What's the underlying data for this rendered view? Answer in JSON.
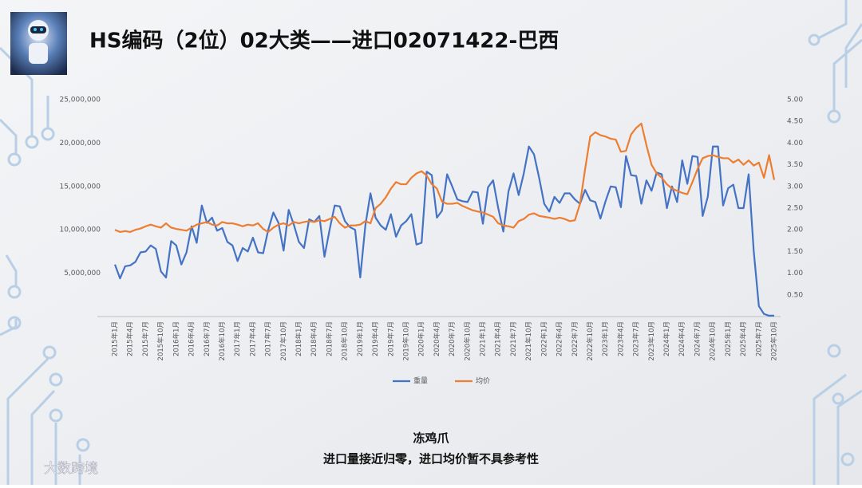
{
  "chart_data": {
    "type": "line",
    "title": "HS编码（2位）02大类——进口02071422-巴西",
    "categories": [
      "2015年1月",
      null,
      null,
      "2015年4月",
      null,
      null,
      "2015年7月",
      null,
      null,
      "2015年10月",
      null,
      null,
      "2016年1月",
      null,
      null,
      "2016年4月",
      null,
      null,
      "2016年7月",
      null,
      null,
      "2016年10月",
      null,
      null,
      "2017年1月",
      null,
      null,
      "2017年4月",
      null,
      null,
      "2017年7月",
      null,
      null,
      "2017年10月",
      null,
      null,
      "2018年1月",
      null,
      null,
      "2018年4月",
      null,
      null,
      "2018年7月",
      null,
      null,
      "2018年10月",
      null,
      null,
      "2019年1月",
      null,
      null,
      "2019年4月",
      null,
      null,
      "2019年7月",
      null,
      null,
      "2019年10月",
      null,
      null,
      "2020年1月",
      null,
      null,
      "2020年4月",
      null,
      null,
      "2020年7月",
      null,
      null,
      "2020年10月",
      null,
      null,
      "2021年1月",
      null,
      null,
      "2021年4月",
      null,
      null,
      "2021年7月",
      null,
      null,
      "2021年10月",
      null,
      null,
      "2022年1月",
      null,
      null,
      "2022年4月",
      null,
      null,
      "2022年7月",
      null,
      null,
      "2022年10月",
      null,
      null,
      "2023年1月",
      null,
      null,
      "2023年4月",
      null,
      null,
      "2023年7月",
      null,
      null,
      "2023年10月",
      null,
      null,
      "2024年1月",
      null,
      null,
      "2024年4月",
      null,
      null,
      "2024年7月",
      null,
      null,
      "2024年10月",
      null,
      null,
      "2025年1月",
      null,
      null,
      "2025年4月",
      null,
      null,
      "2025年7月",
      null,
      null,
      "2025年10月"
    ],
    "series": [
      {
        "name": "重量",
        "color": "#4472c4",
        "values": [
          6000000,
          4400000,
          5800000,
          5900000,
          6300000,
          7400000,
          7500000,
          8200000,
          7800000,
          5200000,
          4500000,
          8700000,
          8200000,
          6000000,
          7400000,
          10400000,
          8500000,
          12800000,
          10800000,
          11400000,
          9900000,
          10200000,
          8600000,
          8200000,
          6400000,
          7900000,
          7500000,
          9100000,
          7400000,
          7300000,
          10000000,
          12000000,
          10800000,
          7600000,
          12300000,
          10600000,
          8600000,
          7900000,
          11200000,
          10900000,
          11600000,
          6900000,
          10000000,
          12800000,
          12700000,
          11000000,
          10300000,
          10000000,
          4500000,
          10500000,
          14200000,
          11400000,
          10500000,
          10000000,
          11800000,
          9200000,
          10500000,
          11000000,
          11800000,
          8300000,
          8500000,
          16700000,
          16300000,
          11400000,
          12200000,
          16400000,
          15000000,
          13500000,
          13300000,
          13200000,
          14400000,
          14300000,
          10700000,
          14900000,
          15700000,
          12500000,
          9800000,
          14400000,
          16500000,
          14000000,
          16500000,
          19600000,
          18700000,
          16000000,
          13000000,
          12100000,
          13800000,
          13100000,
          14200000,
          14200000,
          13500000,
          13000000,
          14600000,
          13400000,
          13200000,
          11300000,
          13300000,
          15000000,
          14900000,
          12600000,
          18500000,
          16300000,
          16200000,
          13000000,
          15700000,
          14500000,
          16600000,
          16400000,
          12500000,
          15000000,
          13200000,
          18000000,
          15300000,
          18500000,
          18400000,
          11600000,
          13800000,
          19600000,
          19600000,
          12800000,
          14800000,
          15200000,
          12500000,
          12500000,
          16400000,
          7500000,
          1200000,
          300000,
          100000,
          100000
        ]
      },
      {
        "name": "均价",
        "color": "#ed7d31",
        "axis": "y2",
        "values": [
          2.0,
          1.95,
          1.97,
          1.95,
          2.0,
          2.03,
          2.08,
          2.12,
          2.08,
          2.05,
          2.15,
          2.05,
          2.02,
          2.0,
          1.98,
          2.05,
          2.12,
          2.15,
          2.18,
          2.12,
          2.1,
          2.18,
          2.15,
          2.15,
          2.12,
          2.08,
          2.12,
          2.1,
          2.15,
          2.02,
          1.95,
          2.05,
          2.12,
          2.15,
          2.1,
          2.18,
          2.15,
          2.18,
          2.2,
          2.18,
          2.22,
          2.2,
          2.25,
          2.3,
          2.15,
          2.05,
          2.1,
          2.1,
          2.12,
          2.2,
          2.15,
          2.5,
          2.6,
          2.75,
          2.95,
          3.1,
          3.05,
          3.05,
          3.2,
          3.3,
          3.35,
          3.25,
          3.05,
          2.95,
          2.65,
          2.6,
          2.6,
          2.62,
          2.55,
          2.5,
          2.45,
          2.42,
          2.4,
          2.35,
          2.3,
          2.15,
          2.1,
          2.08,
          2.05,
          2.2,
          2.25,
          2.35,
          2.38,
          2.32,
          2.3,
          2.28,
          2.25,
          2.28,
          2.25,
          2.2,
          2.22,
          2.6,
          3.4,
          4.15,
          4.25,
          4.18,
          4.15,
          4.1,
          4.08,
          3.8,
          3.82,
          4.2,
          4.35,
          4.45,
          3.95,
          3.5,
          3.3,
          3.2,
          3.05,
          2.95,
          2.9,
          2.85,
          2.82,
          3.1,
          3.4,
          3.65,
          3.7,
          3.72,
          3.68,
          3.65,
          3.65,
          3.55,
          3.62,
          3.5,
          3.6,
          3.48,
          3.55,
          3.2,
          3.72,
          3.15
        ]
      }
    ],
    "ylim": [
      0,
      25000000
    ],
    "yticks": [
      {
        "value": 5000000,
        "label": "5,000,000"
      },
      {
        "value": 10000000,
        "label": "10,000,000"
      },
      {
        "value": 15000000,
        "label": "15,000,000"
      },
      {
        "value": 20000000,
        "label": "20,000,000"
      },
      {
        "value": 25000000,
        "label": "25,000,000"
      }
    ],
    "y2lim": [
      0,
      5
    ],
    "y2ticks": [
      {
        "value": 0.5,
        "label": "0.50"
      },
      {
        "value": 1,
        "label": "1.00"
      },
      {
        "value": 1.5,
        "label": "1.50"
      },
      {
        "value": 2,
        "label": "2.00"
      },
      {
        "value": 2.5,
        "label": "2.50"
      },
      {
        "value": 3,
        "label": "3.00"
      },
      {
        "value": 3.5,
        "label": "3.50"
      },
      {
        "value": 4,
        "label": "4.00"
      },
      {
        "value": 4.5,
        "label": "4.50"
      },
      {
        "value": 5,
        "label": "5.00"
      }
    ],
    "legend": "bottom"
  },
  "footer": {
    "product": "冻鸡爪",
    "note": "进口量接近归零，进口均价暂不具参考性"
  },
  "watermark": "大数跨境"
}
